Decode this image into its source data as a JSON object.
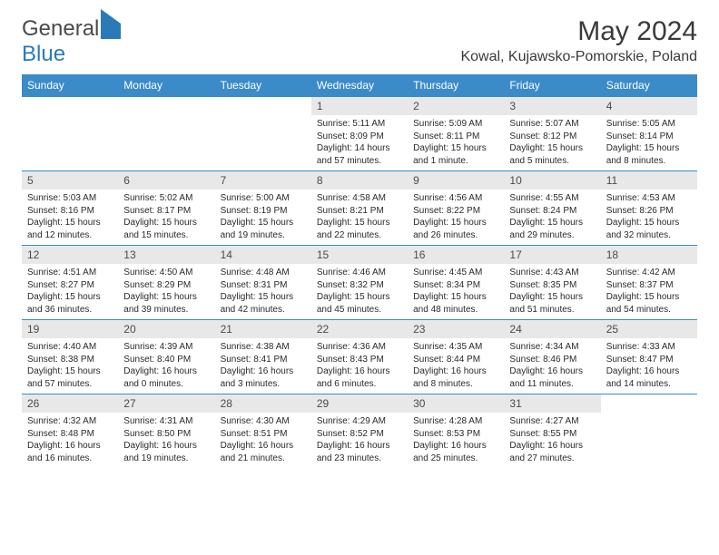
{
  "logo": {
    "part1": "General",
    "part2": "Blue"
  },
  "title": "May 2024",
  "location": "Kowal, Kujawsko-Pomorskie, Poland",
  "colors": {
    "header_bg": "#3b8bc8",
    "header_text": "#ffffff",
    "daynum_bg": "#e8e8e8",
    "border": "#3b8bc8",
    "text": "#2a2a2a",
    "logo_gray": "#4a4a4a",
    "logo_blue": "#2a7ab8"
  },
  "weekdays": [
    "Sunday",
    "Monday",
    "Tuesday",
    "Wednesday",
    "Thursday",
    "Friday",
    "Saturday"
  ],
  "weeks": [
    [
      null,
      null,
      null,
      {
        "n": "1",
        "sr": "5:11 AM",
        "ss": "8:09 PM",
        "dl": "14 hours and 57 minutes."
      },
      {
        "n": "2",
        "sr": "5:09 AM",
        "ss": "8:11 PM",
        "dl": "15 hours and 1 minute."
      },
      {
        "n": "3",
        "sr": "5:07 AM",
        "ss": "8:12 PM",
        "dl": "15 hours and 5 minutes."
      },
      {
        "n": "4",
        "sr": "5:05 AM",
        "ss": "8:14 PM",
        "dl": "15 hours and 8 minutes."
      }
    ],
    [
      {
        "n": "5",
        "sr": "5:03 AM",
        "ss": "8:16 PM",
        "dl": "15 hours and 12 minutes."
      },
      {
        "n": "6",
        "sr": "5:02 AM",
        "ss": "8:17 PM",
        "dl": "15 hours and 15 minutes."
      },
      {
        "n": "7",
        "sr": "5:00 AM",
        "ss": "8:19 PM",
        "dl": "15 hours and 19 minutes."
      },
      {
        "n": "8",
        "sr": "4:58 AM",
        "ss": "8:21 PM",
        "dl": "15 hours and 22 minutes."
      },
      {
        "n": "9",
        "sr": "4:56 AM",
        "ss": "8:22 PM",
        "dl": "15 hours and 26 minutes."
      },
      {
        "n": "10",
        "sr": "4:55 AM",
        "ss": "8:24 PM",
        "dl": "15 hours and 29 minutes."
      },
      {
        "n": "11",
        "sr": "4:53 AM",
        "ss": "8:26 PM",
        "dl": "15 hours and 32 minutes."
      }
    ],
    [
      {
        "n": "12",
        "sr": "4:51 AM",
        "ss": "8:27 PM",
        "dl": "15 hours and 36 minutes."
      },
      {
        "n": "13",
        "sr": "4:50 AM",
        "ss": "8:29 PM",
        "dl": "15 hours and 39 minutes."
      },
      {
        "n": "14",
        "sr": "4:48 AM",
        "ss": "8:31 PM",
        "dl": "15 hours and 42 minutes."
      },
      {
        "n": "15",
        "sr": "4:46 AM",
        "ss": "8:32 PM",
        "dl": "15 hours and 45 minutes."
      },
      {
        "n": "16",
        "sr": "4:45 AM",
        "ss": "8:34 PM",
        "dl": "15 hours and 48 minutes."
      },
      {
        "n": "17",
        "sr": "4:43 AM",
        "ss": "8:35 PM",
        "dl": "15 hours and 51 minutes."
      },
      {
        "n": "18",
        "sr": "4:42 AM",
        "ss": "8:37 PM",
        "dl": "15 hours and 54 minutes."
      }
    ],
    [
      {
        "n": "19",
        "sr": "4:40 AM",
        "ss": "8:38 PM",
        "dl": "15 hours and 57 minutes."
      },
      {
        "n": "20",
        "sr": "4:39 AM",
        "ss": "8:40 PM",
        "dl": "16 hours and 0 minutes."
      },
      {
        "n": "21",
        "sr": "4:38 AM",
        "ss": "8:41 PM",
        "dl": "16 hours and 3 minutes."
      },
      {
        "n": "22",
        "sr": "4:36 AM",
        "ss": "8:43 PM",
        "dl": "16 hours and 6 minutes."
      },
      {
        "n": "23",
        "sr": "4:35 AM",
        "ss": "8:44 PM",
        "dl": "16 hours and 8 minutes."
      },
      {
        "n": "24",
        "sr": "4:34 AM",
        "ss": "8:46 PM",
        "dl": "16 hours and 11 minutes."
      },
      {
        "n": "25",
        "sr": "4:33 AM",
        "ss": "8:47 PM",
        "dl": "16 hours and 14 minutes."
      }
    ],
    [
      {
        "n": "26",
        "sr": "4:32 AM",
        "ss": "8:48 PM",
        "dl": "16 hours and 16 minutes."
      },
      {
        "n": "27",
        "sr": "4:31 AM",
        "ss": "8:50 PM",
        "dl": "16 hours and 19 minutes."
      },
      {
        "n": "28",
        "sr": "4:30 AM",
        "ss": "8:51 PM",
        "dl": "16 hours and 21 minutes."
      },
      {
        "n": "29",
        "sr": "4:29 AM",
        "ss": "8:52 PM",
        "dl": "16 hours and 23 minutes."
      },
      {
        "n": "30",
        "sr": "4:28 AM",
        "ss": "8:53 PM",
        "dl": "16 hours and 25 minutes."
      },
      {
        "n": "31",
        "sr": "4:27 AM",
        "ss": "8:55 PM",
        "dl": "16 hours and 27 minutes."
      },
      null
    ]
  ],
  "labels": {
    "sunrise": "Sunrise:",
    "sunset": "Sunset:",
    "daylight": "Daylight:"
  }
}
